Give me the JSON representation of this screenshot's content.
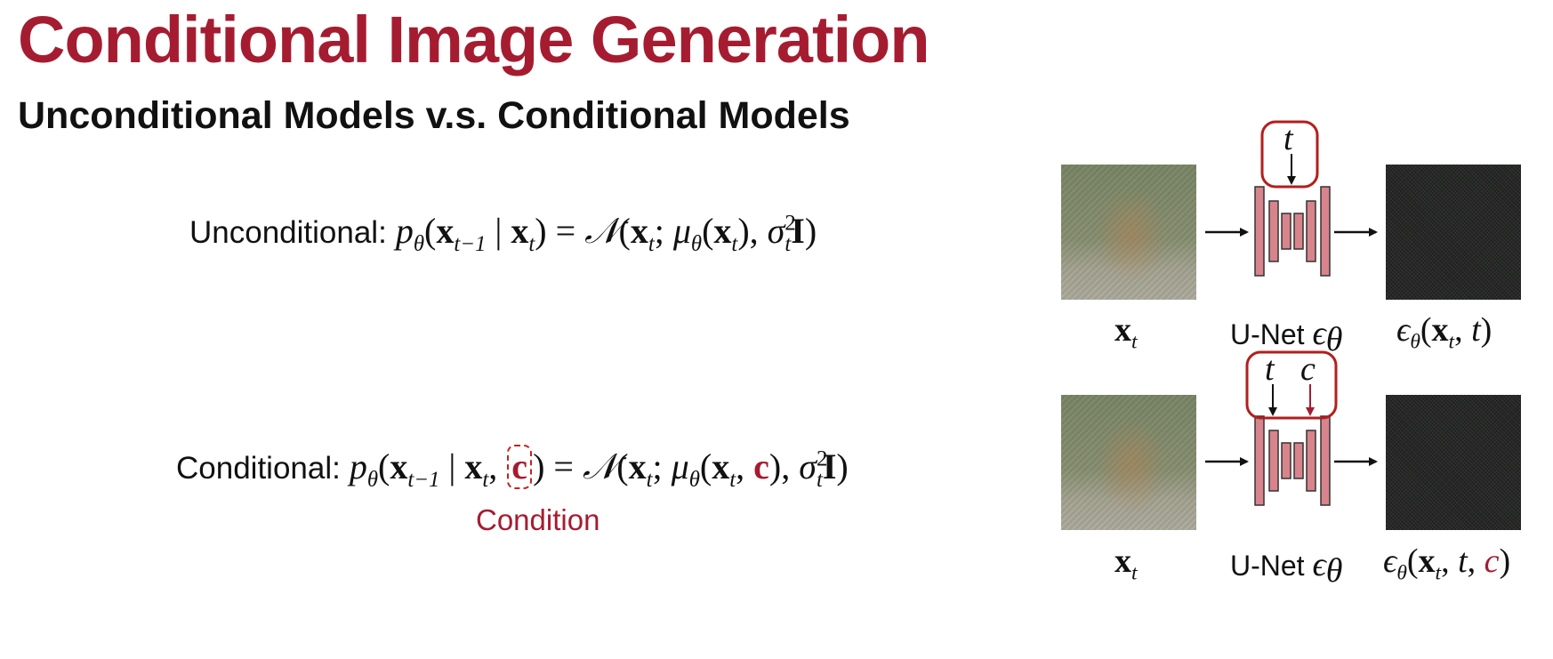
{
  "title": "Conditional Image Generation",
  "subtitle": "Unconditional Models v.s. Conditional Models",
  "unconditional": {
    "label": "Unconditional:",
    "lhs_p": "p",
    "theta": "θ",
    "open": "(",
    "x": "x",
    "sub_tm1": "t−1",
    "bar": " | ",
    "sub_t": "t",
    "eq": " = ",
    "N": "𝒩",
    "semi": "; ",
    "mu": "μ",
    "sigma": "σ",
    "sq": "2",
    "I": "I",
    "close": ")"
  },
  "conditional": {
    "label": "Conditional:",
    "c": "c",
    "comma": ", "
  },
  "condition_label": "Condition",
  "diagram": {
    "top": {
      "input_caption_x": "x",
      "input_caption_sub": "t",
      "unet_label": "U-Net",
      "eps": "ϵ",
      "theta": "θ",
      "t_label": "t",
      "output_caption": "(x, t)"
    },
    "bottom": {
      "t_label": "t",
      "c_label": "c",
      "unet_label": "U-Net"
    }
  },
  "colors": {
    "accent": "#a51c30",
    "unet_fill": "#d8848c",
    "box_stroke": "#c2241c"
  }
}
